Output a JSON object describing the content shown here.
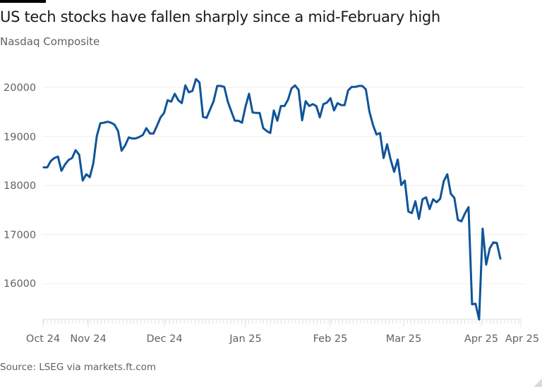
{
  "header": {
    "title": "US tech stocks have fallen sharply since a mid-February high",
    "subtitle": "Nasdaq Composite"
  },
  "footer": {
    "source": "Source: LSEG via markets.ft.com"
  },
  "colors": {
    "line": "#0f5499",
    "grid": "#f0ebe6",
    "axis_text": "#66605c",
    "title": "#1a1a1a"
  },
  "chart_data": {
    "type": "line",
    "title": "US tech stocks have fallen sharply since a mid-February high",
    "subtitle": "Nasdaq Composite",
    "xlabel": "",
    "ylabel": "",
    "ylim": [
      15200,
      20300
    ],
    "y_ticks": [
      16000,
      17000,
      18000,
      19000,
      20000
    ],
    "x_tick_labels": [
      "Oct 24",
      "Nov 24",
      "Dec 24",
      "Jan 25",
      "Feb 25",
      "Mar 25",
      "Apr 25",
      "Apr 25"
    ],
    "grid": "horizontal",
    "legend": "none",
    "source": "Source: LSEG via markets.ft.com",
    "series": [
      {
        "name": "Nasdaq Composite",
        "color": "#0f5499",
        "values": [
          18370,
          18370,
          18500,
          18560,
          18590,
          18300,
          18430,
          18520,
          18560,
          18720,
          18630,
          18100,
          18230,
          18170,
          18450,
          19010,
          19270,
          19280,
          19300,
          19280,
          19240,
          19110,
          18710,
          18820,
          18980,
          18960,
          18960,
          18990,
          19030,
          19170,
          19060,
          19060,
          19220,
          19390,
          19480,
          19740,
          19710,
          19870,
          19740,
          19680,
          20040,
          19900,
          19930,
          20170,
          20100,
          19400,
          19380,
          19550,
          19720,
          20030,
          20030,
          20010,
          19710,
          19510,
          19320,
          19320,
          19280,
          19610,
          19870,
          19490,
          19480,
          19480,
          19170,
          19110,
          19070,
          19530,
          19320,
          19620,
          19620,
          19750,
          19980,
          20040,
          19950,
          19330,
          19720,
          19620,
          19660,
          19620,
          19390,
          19660,
          19690,
          19780,
          19530,
          19680,
          19640,
          19640,
          19940,
          20010,
          20010,
          20030,
          20030,
          19960,
          19510,
          19240,
          19040,
          19070,
          18560,
          18840,
          18530,
          18280,
          18530,
          18010,
          18100,
          17470,
          17440,
          17680,
          17320,
          17720,
          17760,
          17520,
          17720,
          17660,
          17730,
          18090,
          18230,
          17830,
          17750,
          17300,
          17270,
          17430,
          17560,
          15580,
          15590,
          15270,
          17120,
          16390,
          16720,
          16840,
          16830,
          16510
        ]
      }
    ]
  }
}
